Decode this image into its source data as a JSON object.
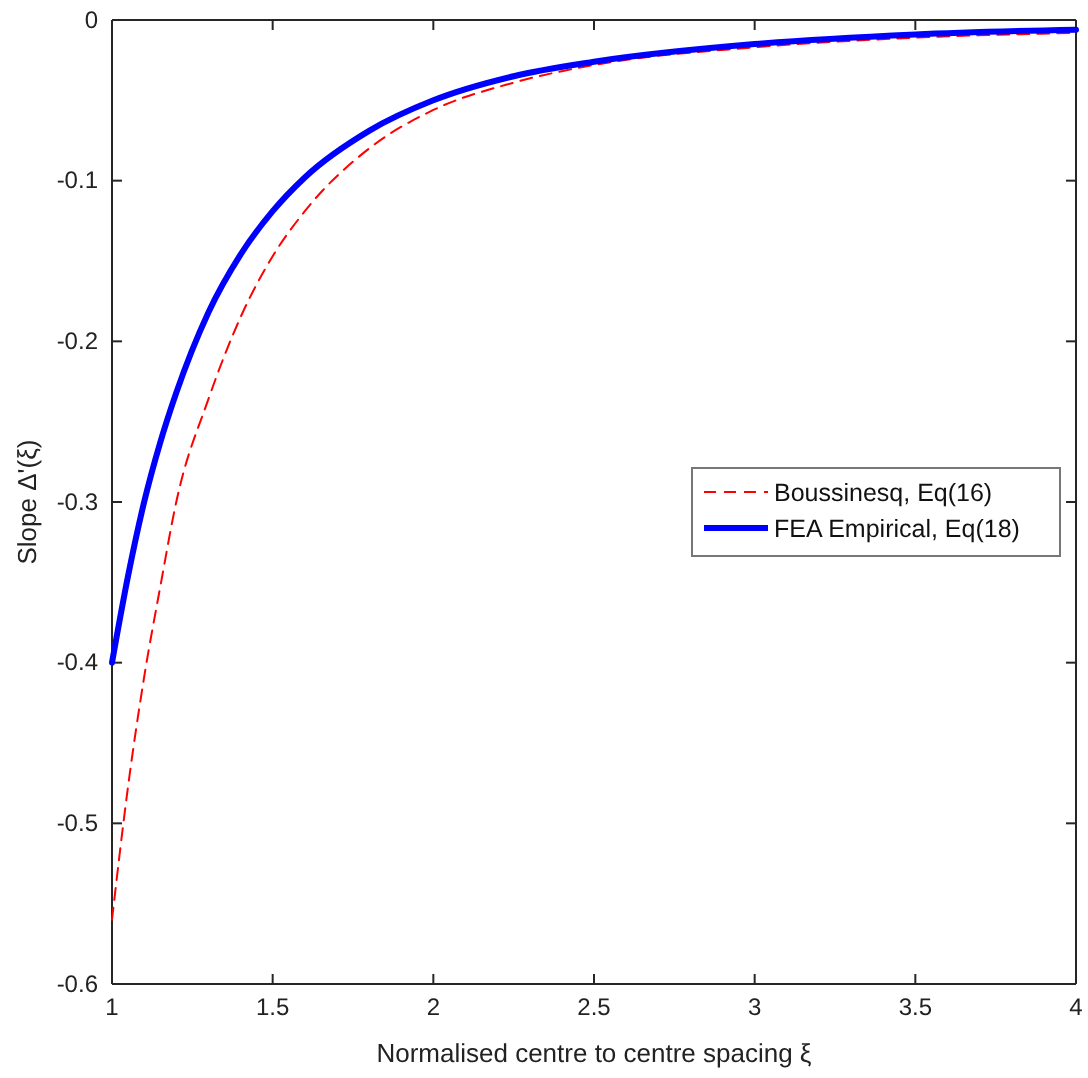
{
  "chart_data": {
    "type": "line",
    "xlabel": "Normalised centre to centre spacing ξ",
    "ylabel": "Slope Δ'(ξ)",
    "x": [
      1,
      1.05,
      1.1,
      1.15,
      1.2,
      1.3,
      1.4,
      1.5,
      1.6,
      1.8,
      2,
      2.25,
      2.5,
      3,
      3.5,
      4
    ],
    "series": [
      {
        "name": "Boussinesq, Eq(16)",
        "color": "#ff0000",
        "line_style": "dashed",
        "values": [
          -0.56,
          -0.477,
          -0.409,
          -0.353,
          -0.3,
          -0.236,
          -0.185,
          -0.147,
          -0.119,
          -0.08,
          -0.056,
          -0.039,
          -0.028,
          -0.017,
          -0.011,
          -0.008
        ]
      },
      {
        "name": "FEA Empirical, Eq(18)",
        "color": "#0000ff",
        "line_style": "solid",
        "values": [
          -0.4,
          -0.346,
          -0.3,
          -0.263,
          -0.232,
          -0.182,
          -0.146,
          -0.119,
          -0.098,
          -0.069,
          -0.05,
          -0.035,
          -0.026,
          -0.015,
          -0.009,
          -0.006
        ]
      }
    ],
    "xlim": [
      1,
      4
    ],
    "xticks": [
      1,
      1.5,
      2,
      2.5,
      3,
      3.5,
      4
    ],
    "ylim": [
      -0.6,
      0
    ],
    "yticks": [
      -0.6,
      -0.5,
      -0.4,
      -0.3,
      -0.2,
      -0.1,
      0
    ],
    "grid": false,
    "legend": "right",
    "marker": "none"
  }
}
